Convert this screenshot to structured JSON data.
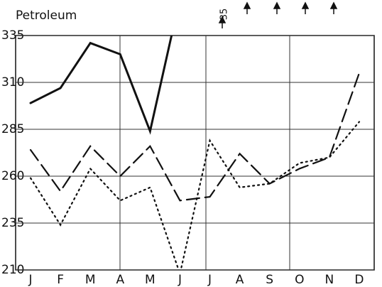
{
  "chart_data": {
    "type": "line",
    "title": "Petroleum",
    "annotation": "35",
    "categories": [
      "J",
      "F",
      "M",
      "A",
      "M",
      "J",
      "J",
      "A",
      "S",
      "O",
      "N",
      "D"
    ],
    "series": [
      {
        "name": "solid",
        "dash": "solid",
        "color": "#111",
        "values": [
          299,
          307,
          331,
          325,
          284,
          355,
          null,
          null,
          null,
          null,
          null,
          null
        ]
      },
      {
        "name": "dashed",
        "dash": "dashed",
        "color": "#111",
        "values": [
          274,
          252,
          276,
          260,
          276,
          247,
          249,
          272,
          256,
          264,
          270,
          315
        ]
      },
      {
        "name": "dotted",
        "dash": "dotted",
        "color": "#111",
        "values": [
          259,
          234,
          264,
          247,
          254,
          208,
          279,
          254,
          256,
          267,
          270,
          289
        ]
      }
    ],
    "ylim": [
      210,
      335
    ],
    "yticks": [
      210,
      235,
      260,
      285,
      310,
      335
    ],
    "grid": true
  }
}
